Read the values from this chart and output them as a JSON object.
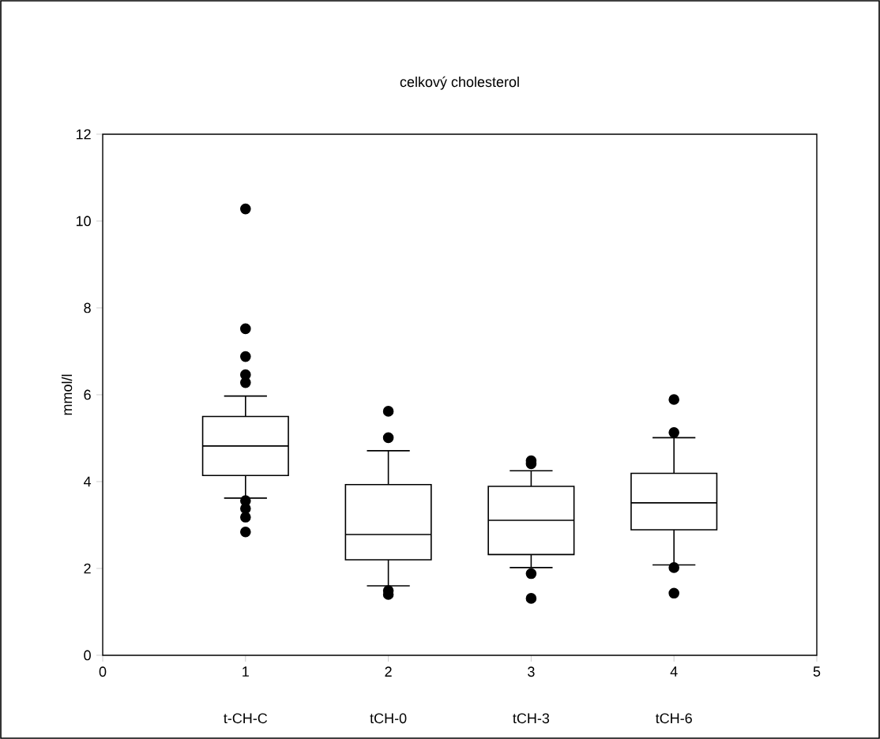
{
  "chart_data": {
    "type": "box",
    "title": "celkový cholesterol",
    "ylabel": "mmol/l",
    "x": [
      1,
      2,
      3,
      4
    ],
    "boxes": [
      {
        "low": 3.62,
        "q1": 4.14,
        "median": 4.82,
        "q3": 5.5,
        "high": 5.97,
        "outliers": [
          10.28,
          7.52,
          6.88,
          6.46,
          6.28,
          3.56,
          3.38,
          3.18,
          2.84
        ]
      },
      {
        "low": 1.6,
        "q1": 2.2,
        "median": 2.78,
        "q3": 3.93,
        "high": 4.71,
        "outliers": [
          5.62,
          5.01,
          1.49,
          1.4
        ]
      },
      {
        "low": 2.02,
        "q1": 2.32,
        "median": 3.11,
        "q3": 3.89,
        "high": 4.25,
        "outliers": [
          4.48,
          4.41,
          1.88,
          1.31
        ]
      },
      {
        "low": 2.08,
        "q1": 2.89,
        "median": 3.51,
        "q3": 4.19,
        "high": 5.01,
        "outliers": [
          5.89,
          5.13,
          2.02,
          1.43
        ]
      }
    ],
    "color": "#000000",
    "marker": "circle",
    "xlim": [
      0,
      5
    ],
    "xticks": [
      0,
      1,
      2,
      3,
      4,
      5
    ],
    "ylim": [
      0,
      12
    ],
    "yticks": [
      0,
      2,
      4,
      6,
      8,
      10,
      12
    ],
    "annotations": [
      "t-CH-C",
      "tCH-0",
      "tCH-3",
      "tCH-6"
    ]
  }
}
